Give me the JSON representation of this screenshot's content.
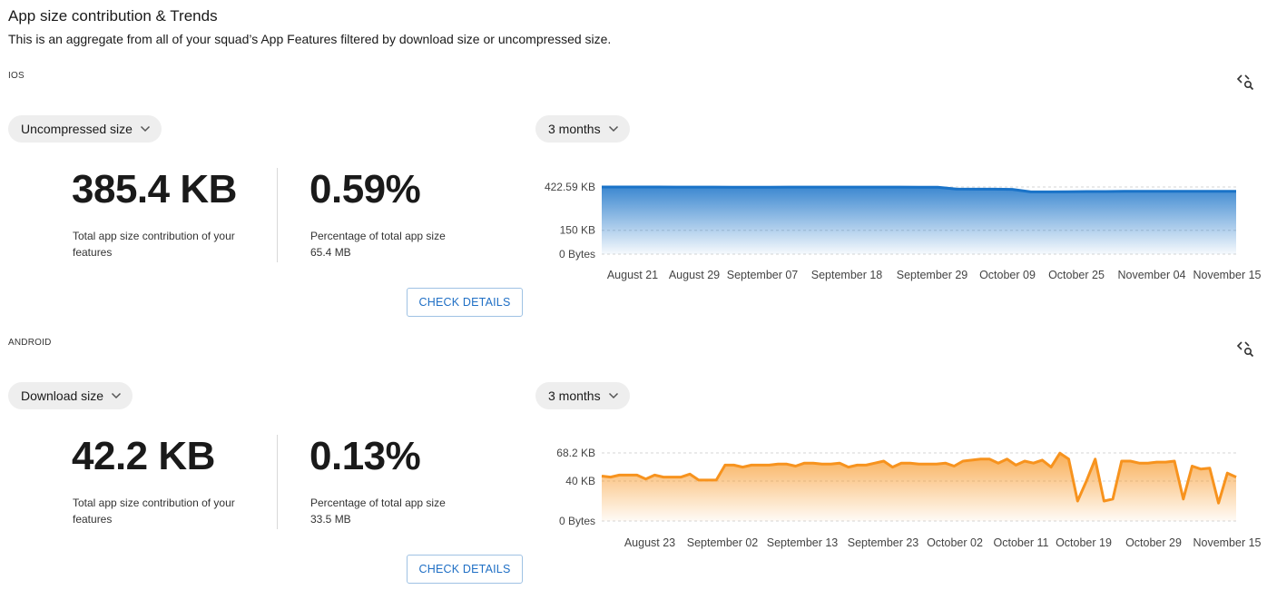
{
  "header": {
    "title": "App size contribution & Trends",
    "subtitle": "This is an aggregate from all of your squad’s App Features filtered by download size or uncompressed size."
  },
  "ios": {
    "platform_label": "IOS",
    "size_select": "Uncompressed size",
    "range_select": "3 months",
    "total_value": "385.4 KB",
    "total_desc": "Total app size contribution of your features",
    "percent_value": "0.59%",
    "percent_desc": "Percentage of total app size",
    "percent_sub": "65.4 MB",
    "button": "CHECK DETAILS",
    "color": "#1a73c8",
    "icons": {
      "expand": "chevron-down-icon",
      "code_search": "code-search-icon"
    }
  },
  "android": {
    "platform_label": "ANDROID",
    "size_select": "Download size",
    "range_select": "3 months",
    "total_value": "42.2 KB",
    "total_desc": "Total app size contribution of your features",
    "percent_value": "0.13%",
    "percent_desc": "Percentage of total app size",
    "percent_sub": "33.5 MB",
    "button": "CHECK DETAILS",
    "color": "#f7931e",
    "icons": {
      "expand": "chevron-down-icon",
      "code_search": "code-search-icon"
    }
  },
  "chart_data": [
    {
      "type": "area",
      "name": "ios",
      "yticks": [
        {
          "value": 422.59,
          "label": "422.59 KB"
        },
        {
          "value": 150,
          "label": "150 KB"
        },
        {
          "value": 0,
          "label": "0 Bytes"
        }
      ],
      "ylim": [
        0,
        422.59
      ],
      "xticks": [
        "August 21",
        "August 29",
        "September 07",
        "September 18",
        "September 29",
        "October 09",
        "October 25",
        "November 04",
        "November 15"
      ],
      "values": [
        422.6,
        422.6,
        422.6,
        422.6,
        421.8,
        421.8,
        421.8,
        421.0,
        421.0,
        421.4,
        421.8,
        422.2,
        422.2,
        422.2,
        422.2,
        422.2,
        421.8,
        421.4,
        421.0,
        410.0,
        409.0,
        409.0,
        408.0,
        392.0,
        392.0,
        393.0,
        394.0,
        394.0,
        395.0,
        395.0,
        395.0,
        395.0,
        395.0,
        395.0,
        395.0
      ],
      "grid": true
    },
    {
      "type": "area",
      "name": "android",
      "yticks": [
        {
          "value": 68.2,
          "label": "68.2 KB"
        },
        {
          "value": 40,
          "label": "40 KB"
        },
        {
          "value": 0,
          "label": "0 Bytes"
        }
      ],
      "ylim": [
        0,
        68.2
      ],
      "xticks": [
        "August 23",
        "September 02",
        "September 13",
        "September 23",
        "October 02",
        "October 11",
        "October 19",
        "October 29",
        "November 15"
      ],
      "values": [
        45,
        44,
        46,
        46,
        46,
        42,
        46,
        44,
        44,
        44,
        47,
        41,
        41,
        41,
        56,
        56,
        54,
        56,
        56,
        56,
        57,
        57,
        55,
        58,
        58,
        57,
        57,
        58,
        54,
        56,
        56,
        58,
        60,
        54,
        58,
        58,
        57,
        57,
        57,
        58,
        55,
        60,
        61,
        62,
        62,
        58,
        62,
        56,
        60,
        58,
        61,
        54,
        68,
        62,
        20,
        40,
        62,
        20,
        22,
        60,
        60,
        58,
        58,
        59,
        59,
        60,
        22,
        55,
        52,
        53,
        18,
        48,
        44
      ],
      "grid": true
    }
  ]
}
